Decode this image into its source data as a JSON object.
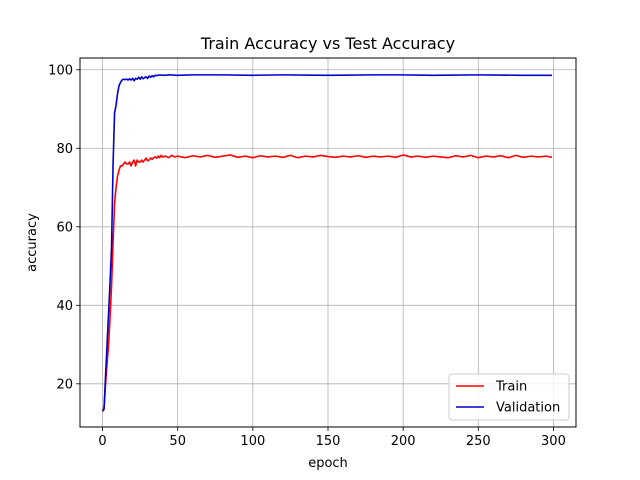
{
  "chart_data": {
    "type": "line",
    "title": "Train Accuracy vs Test Accuracy",
    "xlabel": "epoch",
    "ylabel": "accuracy",
    "xlim": [
      -15,
      315
    ],
    "ylim": [
      9,
      103
    ],
    "xticks": [
      0,
      50,
      100,
      150,
      200,
      250,
      300
    ],
    "yticks": [
      20,
      40,
      60,
      80,
      100
    ],
    "grid": true,
    "legend_position": "lower-right",
    "series": [
      {
        "name": "Train",
        "color": "#ff0000",
        "points": [
          [
            0,
            13
          ],
          [
            1,
            14
          ],
          [
            2,
            20
          ],
          [
            3,
            25
          ],
          [
            4,
            30
          ],
          [
            5,
            37
          ],
          [
            6,
            45
          ],
          [
            7,
            56
          ],
          [
            8,
            66
          ],
          [
            9,
            70
          ],
          [
            10,
            73
          ],
          [
            11,
            74.5
          ],
          [
            12,
            75.5
          ],
          [
            13,
            75.5
          ],
          [
            14,
            76
          ],
          [
            15,
            76.5
          ],
          [
            16,
            76
          ],
          [
            17,
            76
          ],
          [
            18,
            76.5
          ],
          [
            19,
            75.5
          ],
          [
            20,
            76.5
          ],
          [
            21,
            77
          ],
          [
            22,
            75.5
          ],
          [
            23,
            77
          ],
          [
            24,
            76.5
          ],
          [
            25,
            76.5
          ],
          [
            26,
            77
          ],
          [
            27,
            76.5
          ],
          [
            28,
            77
          ],
          [
            29,
            77.5
          ],
          [
            30,
            76.8
          ],
          [
            31,
            77
          ],
          [
            32,
            77.5
          ],
          [
            33,
            77.2
          ],
          [
            34,
            77.6
          ],
          [
            35,
            77.8
          ],
          [
            36,
            77.5
          ],
          [
            37,
            78
          ],
          [
            38,
            77.6
          ],
          [
            39,
            78.2
          ],
          [
            40,
            77.8
          ],
          [
            42,
            78
          ],
          [
            44,
            77.6
          ],
          [
            46,
            78.2
          ],
          [
            48,
            77.8
          ],
          [
            50,
            78
          ],
          [
            55,
            77.6
          ],
          [
            60,
            78.1
          ],
          [
            65,
            77.8
          ],
          [
            70,
            78.2
          ],
          [
            75,
            77.7
          ],
          [
            80,
            78
          ],
          [
            85,
            78.3
          ],
          [
            90,
            77.7
          ],
          [
            95,
            78
          ],
          [
            100,
            77.6
          ],
          [
            105,
            78.1
          ],
          [
            110,
            77.8
          ],
          [
            115,
            78
          ],
          [
            120,
            77.7
          ],
          [
            125,
            78.2
          ],
          [
            130,
            77.6
          ],
          [
            135,
            78
          ],
          [
            140,
            77.8
          ],
          [
            145,
            78.2
          ],
          [
            150,
            77.9
          ],
          [
            155,
            77.7
          ],
          [
            160,
            78
          ],
          [
            165,
            77.8
          ],
          [
            170,
            78.1
          ],
          [
            175,
            77.7
          ],
          [
            180,
            78
          ],
          [
            185,
            77.8
          ],
          [
            190,
            78
          ],
          [
            195,
            77.7
          ],
          [
            200,
            78.3
          ],
          [
            205,
            77.8
          ],
          [
            210,
            78
          ],
          [
            215,
            77.7
          ],
          [
            220,
            78
          ],
          [
            225,
            77.8
          ],
          [
            230,
            77.6
          ],
          [
            235,
            78.1
          ],
          [
            240,
            77.8
          ],
          [
            245,
            78.2
          ],
          [
            250,
            77.6
          ],
          [
            255,
            78
          ],
          [
            260,
            77.8
          ],
          [
            265,
            78.1
          ],
          [
            270,
            77.6
          ],
          [
            275,
            78.2
          ],
          [
            280,
            77.7
          ],
          [
            285,
            78
          ],
          [
            290,
            77.8
          ],
          [
            295,
            78
          ],
          [
            299,
            77.7
          ]
        ]
      },
      {
        "name": "Validation",
        "color": "#0000cc",
        "points": [
          [
            0,
            13
          ],
          [
            1,
            13.5
          ],
          [
            2,
            22
          ],
          [
            3,
            30
          ],
          [
            4,
            38
          ],
          [
            5,
            46
          ],
          [
            6,
            55
          ],
          [
            7,
            76
          ],
          [
            8,
            89
          ],
          [
            9,
            91
          ],
          [
            10,
            94
          ],
          [
            11,
            96
          ],
          [
            12,
            96.8
          ],
          [
            13,
            97.4
          ],
          [
            14,
            97.6
          ],
          [
            15,
            97.5
          ],
          [
            16,
            97.6
          ],
          [
            17,
            97.4
          ],
          [
            18,
            97.7
          ],
          [
            19,
            97.4
          ],
          [
            20,
            97.8
          ],
          [
            21,
            97.2
          ],
          [
            22,
            97.8
          ],
          [
            23,
            97.6
          ],
          [
            24,
            98.1
          ],
          [
            25,
            97.6
          ],
          [
            26,
            98.2
          ],
          [
            27,
            97.7
          ],
          [
            28,
            98
          ],
          [
            29,
            98.2
          ],
          [
            30,
            97.8
          ],
          [
            31,
            98.4
          ],
          [
            32,
            98.1
          ],
          [
            33,
            98.5
          ],
          [
            34,
            98.2
          ],
          [
            35,
            98.6
          ],
          [
            36,
            98.5
          ],
          [
            38,
            98.7
          ],
          [
            40,
            98.6
          ],
          [
            45,
            98.7
          ],
          [
            50,
            98.6
          ],
          [
            60,
            98.7
          ],
          [
            80,
            98.7
          ],
          [
            100,
            98.6
          ],
          [
            120,
            98.7
          ],
          [
            150,
            98.6
          ],
          [
            180,
            98.7
          ],
          [
            200,
            98.7
          ],
          [
            220,
            98.6
          ],
          [
            250,
            98.7
          ],
          [
            280,
            98.6
          ],
          [
            299,
            98.6
          ]
        ]
      }
    ]
  }
}
